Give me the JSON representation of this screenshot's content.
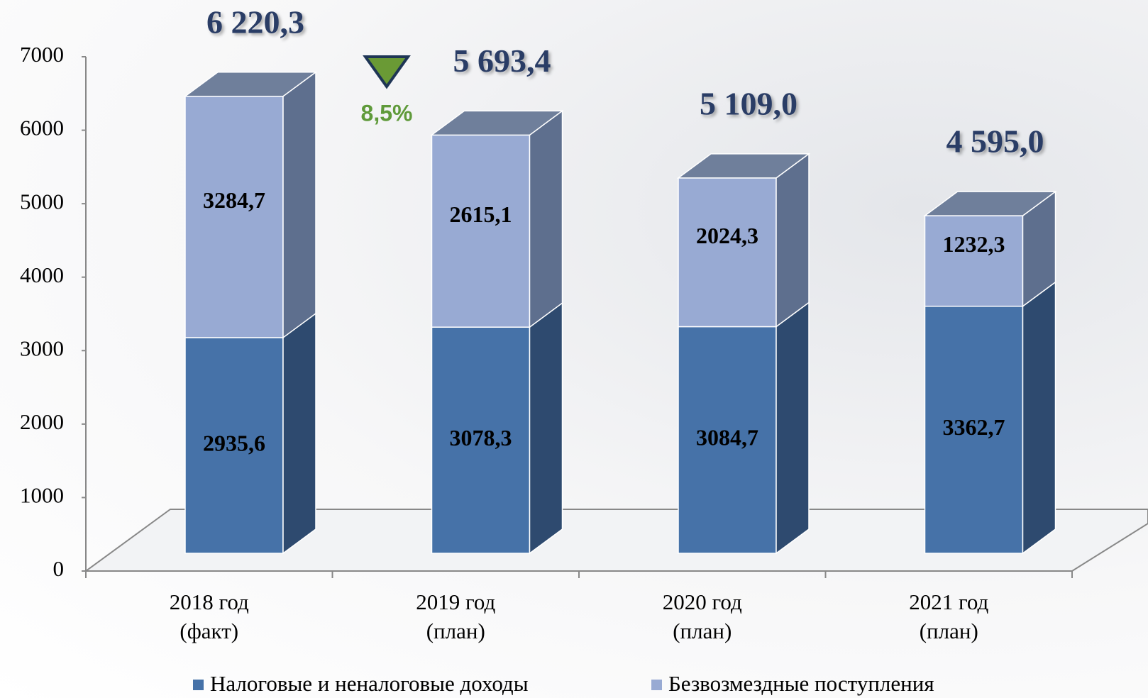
{
  "chart_data": {
    "type": "bar3d_stacked",
    "categories": [
      [
        "2018  год",
        "(факт)"
      ],
      [
        "2019  год",
        "(план)"
      ],
      [
        "2020  год",
        "(план)"
      ],
      [
        "2021  год",
        "(план)"
      ]
    ],
    "series": [
      {
        "name": "Налоговые и неналоговые доходы",
        "color": "#4672a8",
        "side_color": "#2e4a6f",
        "values": [
          2935.6,
          3078.3,
          3084.7,
          3362.7
        ],
        "value_labels": [
          "2935,6",
          "3078,3",
          "3084,7",
          "3362,7"
        ]
      },
      {
        "name": "Безвозмездные поступления",
        "color": "#98aad3",
        "side_color": "#5e6f8e",
        "values": [
          3284.7,
          2615.1,
          2024.3,
          1232.3
        ],
        "value_labels": [
          "3284,7",
          "2615,1",
          "2024,3",
          "1232,3"
        ]
      }
    ],
    "totals": {
      "values": [
        6220.3,
        5693.4,
        5109.0,
        4595.0
      ],
      "value_labels": [
        "6 220,3",
        "5 693,4",
        "5 109,0",
        "4 595,0"
      ]
    },
    "annotation": "8,5%",
    "ylim": [
      0,
      7000
    ],
    "yticks": [
      0,
      1000,
      2000,
      3000,
      4000,
      5000,
      6000,
      7000
    ]
  }
}
